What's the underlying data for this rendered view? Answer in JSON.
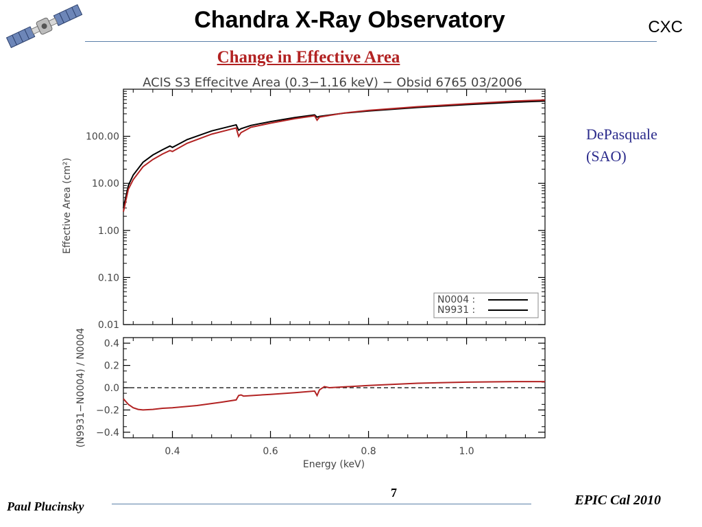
{
  "header": {
    "title": "Chandra X-Ray Observatory",
    "org": "CXC",
    "subtitle": "Change in Effective Area"
  },
  "logo": {
    "icon": "satellite-icon"
  },
  "author_note": {
    "line1": "DePasquale",
    "line2": "(SAO)"
  },
  "footer": {
    "author": "Paul Plucinsky",
    "event": "EPIC Cal 2010",
    "page_number": "7"
  },
  "colors": {
    "accent": "#b22222",
    "rule": "#5a7fa8",
    "note": "#2b2b8c",
    "series_a": "#000000",
    "series_b": "#b22222"
  },
  "chart_data": [
    {
      "type": "line",
      "title": "ACIS S3 Effecitve Area (0.3−1.16 keV) − Obsid 6765 03/2006",
      "xlabel": "",
      "ylabel": "Effective Area (cm²)",
      "yscale": "log",
      "xlim": [
        0.3,
        1.16
      ],
      "ylim": [
        0.01,
        1000
      ],
      "yticks": [
        0.01,
        0.1,
        1,
        10,
        100
      ],
      "ytick_labels": [
        "0.01",
        "0.10",
        "1.00",
        "10.00",
        "100.00"
      ],
      "legend": {
        "placement": "bottom-right",
        "entries": [
          "N0004 :",
          "N9931 :"
        ]
      },
      "series": [
        {
          "name": "N0004",
          "color": "#000000",
          "x": [
            0.3,
            0.31,
            0.32,
            0.34,
            0.36,
            0.38,
            0.395,
            0.4,
            0.43,
            0.48,
            0.52,
            0.53,
            0.535,
            0.54,
            0.56,
            0.6,
            0.65,
            0.69,
            0.695,
            0.7,
            0.75,
            0.8,
            0.9,
            1.0,
            1.1,
            1.16
          ],
          "y": [
            3,
            9,
            15,
            28,
            40,
            52,
            62,
            58,
            85,
            130,
            165,
            175,
            135,
            145,
            170,
            205,
            250,
            285,
            255,
            265,
            310,
            345,
            410,
            470,
            530,
            560
          ]
        },
        {
          "name": "N9931",
          "color": "#b22222",
          "x": [
            0.3,
            0.31,
            0.32,
            0.34,
            0.36,
            0.38,
            0.395,
            0.4,
            0.43,
            0.48,
            0.52,
            0.53,
            0.535,
            0.54,
            0.56,
            0.6,
            0.65,
            0.69,
            0.695,
            0.7,
            0.75,
            0.8,
            0.9,
            1.0,
            1.1,
            1.16
          ],
          "y": [
            2.5,
            7.5,
            12,
            22.5,
            32,
            42,
            50,
            47.5,
            71,
            111,
            142,
            150,
            100,
            120,
            155,
            190,
            237,
            273,
            220,
            255,
            312,
            355,
            425,
            490,
            560,
            590
          ]
        }
      ]
    },
    {
      "type": "line",
      "title": "",
      "xlabel": "Energy (keV)",
      "ylabel": "(N9931−N0004) / N0004",
      "xlim": [
        0.3,
        1.16
      ],
      "ylim": [
        -0.45,
        0.45
      ],
      "xticks": [
        0.4,
        0.6,
        0.8,
        1.0
      ],
      "xtick_labels": [
        "0.4",
        "0.6",
        "0.8",
        "1.0"
      ],
      "yticks": [
        -0.4,
        -0.2,
        0.0,
        0.2,
        0.4
      ],
      "ytick_labels": [
        "−0.4",
        "−0.2",
        "0.0",
        "0.2",
        "0.4"
      ],
      "reference_line": 0.0,
      "series": [
        {
          "name": "",
          "color": "#b22222",
          "x": [
            0.3,
            0.31,
            0.32,
            0.33,
            0.34,
            0.36,
            0.38,
            0.4,
            0.45,
            0.5,
            0.53,
            0.535,
            0.54,
            0.545,
            0.6,
            0.65,
            0.69,
            0.695,
            0.7,
            0.71,
            0.72,
            0.8,
            0.9,
            1.0,
            1.1,
            1.16
          ],
          "y": [
            -0.1,
            -0.15,
            -0.18,
            -0.195,
            -0.2,
            -0.195,
            -0.185,
            -0.18,
            -0.16,
            -0.13,
            -0.11,
            -0.07,
            -0.065,
            -0.075,
            -0.06,
            -0.045,
            -0.03,
            -0.07,
            -0.02,
            0.01,
            0.0,
            0.02,
            0.04,
            0.05,
            0.055,
            0.055
          ]
        }
      ]
    }
  ]
}
